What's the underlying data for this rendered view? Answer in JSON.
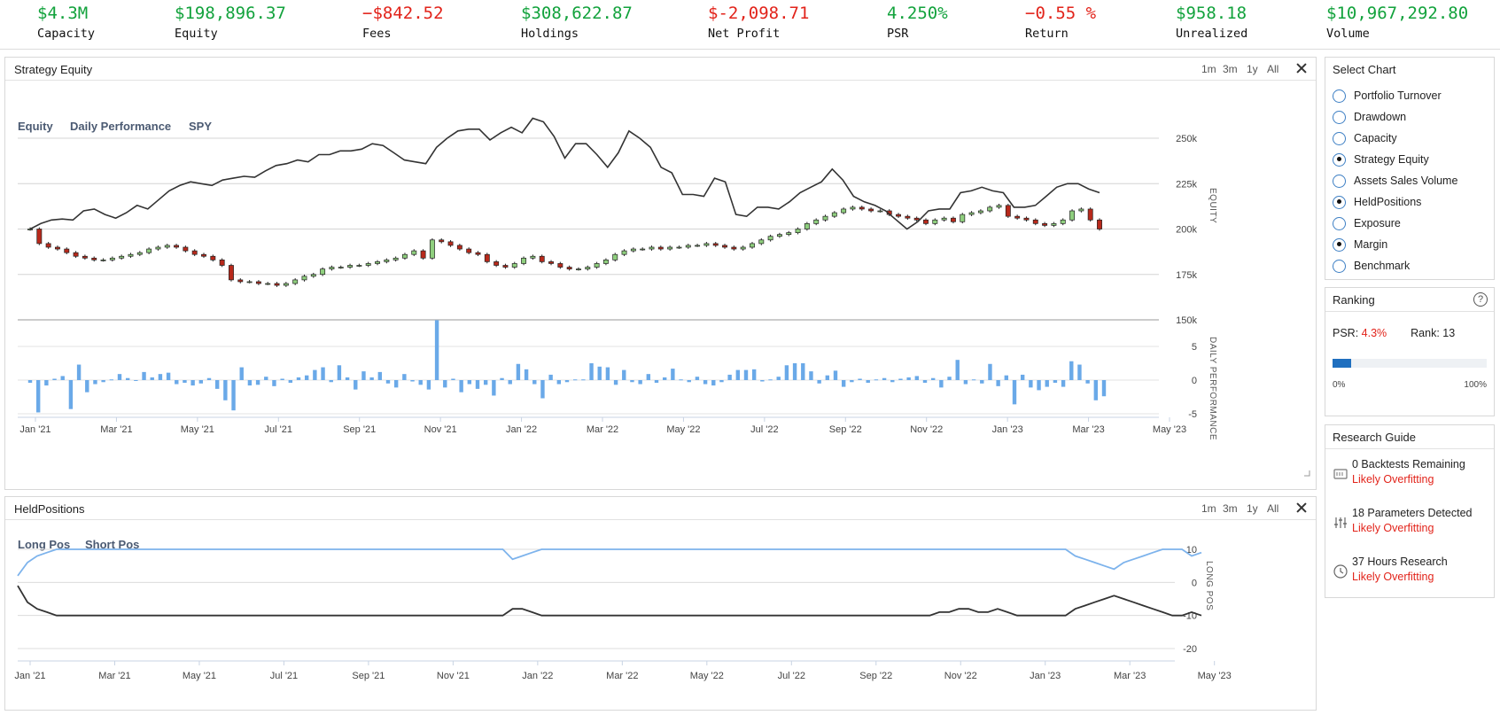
{
  "stats": [
    {
      "value": "$4.3M",
      "label": "Capacity",
      "tone": "pos"
    },
    {
      "value": "$198,896.37",
      "label": "Equity",
      "tone": "pos"
    },
    {
      "value": "−$842.52",
      "label": "Fees",
      "tone": "neg"
    },
    {
      "value": "$308,622.87",
      "label": "Holdings",
      "tone": "pos"
    },
    {
      "value": "$-2,098.71",
      "label": "Net Profit",
      "tone": "neg"
    },
    {
      "value": "4.250%",
      "label": "PSR",
      "tone": "pos"
    },
    {
      "value": "−0.55 %",
      "label": "Return",
      "tone": "neg"
    },
    {
      "value": "$958.18",
      "label": "Unrealized",
      "tone": "pos"
    },
    {
      "value": "$10,967,292.80",
      "label": "Volume",
      "tone": "pos"
    }
  ],
  "equity_panel": {
    "title": "Strategy Equity",
    "ranges": [
      "1m",
      "3m",
      "1y",
      "All"
    ],
    "legend": [
      "Equity",
      "Daily Performance",
      "SPY"
    ]
  },
  "held_panel": {
    "title": "HeldPositions",
    "ranges": [
      "1m",
      "3m",
      "1y",
      "All"
    ],
    "legend": [
      "Long Pos",
      "Short Pos"
    ]
  },
  "select_chart": {
    "title": "Select Chart",
    "options": [
      {
        "label": "Portfolio Turnover",
        "selected": false
      },
      {
        "label": "Drawdown",
        "selected": false
      },
      {
        "label": "Capacity",
        "selected": false
      },
      {
        "label": "Strategy Equity",
        "selected": true
      },
      {
        "label": "Assets Sales Volume",
        "selected": false
      },
      {
        "label": "HeldPositions",
        "selected": true
      },
      {
        "label": "Exposure",
        "selected": false
      },
      {
        "label": "Margin",
        "selected": true
      },
      {
        "label": "Benchmark",
        "selected": false
      }
    ]
  },
  "ranking": {
    "title": "Ranking",
    "help": "?",
    "psr_label": "PSR:",
    "psr_value": "4.3%",
    "rank_label": "Rank:",
    "rank_value": "13",
    "progress_fraction": 0.12,
    "min_label": "0%",
    "max_label": "100%"
  },
  "research_guide": {
    "title": "Research Guide",
    "items": [
      {
        "text": "0 Backtests Remaining",
        "warn": "Likely Overfitting",
        "icon": "terminal-icon"
      },
      {
        "text": "18 Parameters Detected",
        "warn": "Likely Overfitting",
        "icon": "sliders-icon"
      },
      {
        "text": "37 Hours Research",
        "warn": "Likely Overfitting",
        "icon": "clock-icon"
      }
    ]
  },
  "chart_data": [
    {
      "type": "line",
      "title": "Strategy Equity",
      "ylabel": "EQUITY",
      "ylim": [
        150000,
        250000
      ],
      "yticks": [
        "250k",
        "225k",
        "200k",
        "175k",
        "150k"
      ],
      "xticks": [
        "Jan '21",
        "Mar '21",
        "May '21",
        "Jul '21",
        "Sep '21",
        "Nov '21",
        "Jan '22",
        "Mar '22",
        "May '22",
        "Jul '22",
        "Sep '22",
        "Nov '22",
        "Jan '23",
        "Mar '23",
        "May '23"
      ],
      "series": [
        {
          "name": "SPY",
          "kind": "line",
          "color": "#333333",
          "values": [
            200000,
            203000,
            205000,
            205500,
            205000,
            210000,
            211000,
            208000,
            206000,
            209000,
            213000,
            211000,
            216000,
            221000,
            224000,
            226000,
            225000,
            224000,
            227000,
            228000,
            229000,
            228500,
            232000,
            235000,
            236000,
            238000,
            237000,
            241000,
            241000,
            243000,
            243000,
            244000,
            247000,
            246000,
            242000,
            238000,
            237000,
            236000,
            245000,
            250000,
            254000,
            255000,
            255000,
            249000,
            253000,
            256000,
            253000,
            261000,
            259000,
            251000,
            239000,
            247000,
            247000,
            241000,
            234000,
            242000,
            254000,
            250000,
            245000,
            234000,
            231000,
            219000,
            219000,
            218000,
            228000,
            226000,
            208000,
            207000,
            212000,
            212000,
            211000,
            215000,
            220000,
            223000,
            226000,
            233000,
            227000,
            218000,
            215000,
            213000,
            210000,
            205000,
            200000,
            204000,
            210000,
            211000,
            211000,
            220000,
            221000,
            223000,
            221000,
            220000,
            212000,
            212000,
            213000,
            218000,
            223000,
            225000,
            225000,
            222000,
            220000
          ]
        },
        {
          "name": "Equity",
          "kind": "candlestick",
          "up_color": "#8fcf7e",
          "down_color": "#b8291b",
          "close": [
            200000,
            192000,
            190000,
            189000,
            187000,
            185000,
            184000,
            183000,
            183000,
            184000,
            185000,
            186000,
            187000,
            189000,
            190000,
            191000,
            190000,
            188000,
            186000,
            185000,
            183000,
            180000,
            172000,
            171000,
            171000,
            170000,
            170000,
            169000,
            170000,
            172000,
            174000,
            175000,
            178000,
            179000,
            179000,
            180000,
            180000,
            181000,
            182000,
            183000,
            184000,
            186000,
            188000,
            184000,
            194000,
            193000,
            191000,
            189000,
            187000,
            186000,
            182000,
            180000,
            179000,
            181000,
            184000,
            185000,
            182000,
            181000,
            179000,
            178000,
            178000,
            179000,
            181000,
            183000,
            186000,
            188000,
            189000,
            189000,
            190000,
            189000,
            190000,
            190000,
            191000,
            191000,
            192000,
            191000,
            190000,
            189000,
            190000,
            192000,
            194000,
            196000,
            197000,
            198000,
            200000,
            203000,
            205000,
            207000,
            209000,
            211000,
            212000,
            211000,
            210000,
            210000,
            208000,
            207000,
            206000,
            205000,
            203000,
            205000,
            206000,
            204000,
            208000,
            209000,
            210000,
            212000,
            213000,
            207000,
            206000,
            205000,
            203000,
            202000,
            203000,
            205000,
            210000,
            211000,
            205000,
            200000
          ]
        }
      ]
    },
    {
      "type": "bar",
      "title": "Daily Performance",
      "ylabel": "DAILY PERFORMANCE",
      "ylim": [
        -5,
        7.5
      ],
      "yticks": [
        "5",
        "0",
        "-5"
      ],
      "series": [
        {
          "name": "Daily Performance",
          "color": "#6aa9e8",
          "values": [
            -0.4,
            -4.8,
            -0.8,
            0.2,
            0.6,
            -4.3,
            2.3,
            -1.8,
            -0.6,
            -0.3,
            0.1,
            0.9,
            0.3,
            -0.1,
            1.2,
            0.4,
            0.9,
            1.1,
            -0.6,
            -0.4,
            -0.8,
            -0.5,
            0.3,
            -1.3,
            -3.0,
            -4.5,
            1.9,
            -0.8,
            -0.7,
            0.5,
            -0.9,
            0.2,
            -0.4,
            0.4,
            0.7,
            1.5,
            1.9,
            -0.3,
            2.2,
            0.4,
            -1.4,
            1.3,
            0.4,
            1.2,
            -0.5,
            -1.1,
            0.9,
            -0.2,
            -0.7,
            -1.4,
            8.9,
            -1.1,
            0.2,
            -1.8,
            -0.6,
            -1.3,
            -0.7,
            -2.3,
            0.3,
            -0.6,
            2.4,
            1.6,
            -0.6,
            -2.7,
            0.8,
            -0.6,
            -0.3,
            0.1,
            0.1,
            2.5,
            2.0,
            1.9,
            -0.7,
            1.5,
            -0.3,
            -0.6,
            0.9,
            -0.4,
            0.4,
            1.7,
            0.1,
            -0.3,
            0.5,
            -0.6,
            -0.8,
            -0.3,
            0.8,
            1.5,
            1.5,
            1.6,
            -0.2,
            0.1,
            0.5,
            2.2,
            2.5,
            2.5,
            1.3,
            -0.5,
            0.7,
            1.4,
            -1.0,
            -0.3,
            0.2,
            -0.4,
            0.1,
            0.3,
            -0.3,
            0.2,
            0.4,
            0.6,
            -0.4,
            0.3,
            -1.1,
            0.5,
            3.0,
            -0.6,
            0.1,
            -0.5,
            2.4,
            -0.9,
            0.7,
            -3.6,
            0.8,
            -1.1,
            -1.5,
            -1.0,
            -0.4,
            -1.0,
            2.8,
            2.3,
            -0.5,
            -3.0,
            -2.4
          ]
        }
      ]
    },
    {
      "type": "line",
      "title": "HeldPositions",
      "ylabel": "LONG POS",
      "ylim": [
        -20,
        10
      ],
      "yticks": [
        "10",
        "0",
        "-10",
        "-20"
      ],
      "xticks": [
        "Jan '21",
        "Mar '21",
        "May '21",
        "Jul '21",
        "Sep '21",
        "Nov '21",
        "Jan '22",
        "Mar '22",
        "May '22",
        "Jul '22",
        "Sep '22",
        "Nov '22",
        "Jan '23",
        "Mar '23",
        "May '23"
      ],
      "series": [
        {
          "name": "Long Pos",
          "color": "#7db3ec",
          "values": [
            2,
            6,
            8,
            9,
            10,
            10,
            10,
            10,
            10,
            10,
            10,
            10,
            10,
            10,
            10,
            10,
            10,
            10,
            10,
            10,
            10,
            10,
            10,
            10,
            10,
            10,
            10,
            10,
            10,
            10,
            10,
            10,
            10,
            10,
            10,
            10,
            10,
            10,
            10,
            10,
            10,
            10,
            10,
            10,
            10,
            10,
            10,
            10,
            10,
            10,
            10,
            7,
            8,
            9,
            10,
            10,
            10,
            10,
            10,
            10,
            10,
            10,
            10,
            10,
            10,
            10,
            10,
            10,
            10,
            10,
            10,
            10,
            10,
            10,
            10,
            10,
            10,
            10,
            10,
            10,
            10,
            10,
            10,
            10,
            10,
            10,
            10,
            10,
            10,
            10,
            10,
            10,
            10,
            10,
            10,
            10,
            10,
            10,
            10,
            10,
            10,
            10,
            10,
            10,
            10,
            10,
            10,
            10,
            10,
            8,
            7,
            6,
            5,
            4,
            6,
            7,
            8,
            9,
            10,
            10,
            10,
            8,
            9
          ]
        },
        {
          "name": "Short Pos",
          "color": "#333333",
          "values": [
            -1,
            -6,
            -8,
            -9,
            -10,
            -10,
            -10,
            -10,
            -10,
            -10,
            -10,
            -10,
            -10,
            -10,
            -10,
            -10,
            -10,
            -10,
            -10,
            -10,
            -10,
            -10,
            -10,
            -10,
            -10,
            -10,
            -10,
            -10,
            -10,
            -10,
            -10,
            -10,
            -10,
            -10,
            -10,
            -10,
            -10,
            -10,
            -10,
            -10,
            -10,
            -10,
            -10,
            -10,
            -10,
            -10,
            -10,
            -10,
            -10,
            -10,
            -10,
            -8,
            -8,
            -9,
            -10,
            -10,
            -10,
            -10,
            -10,
            -10,
            -10,
            -10,
            -10,
            -10,
            -10,
            -10,
            -10,
            -10,
            -10,
            -10,
            -10,
            -10,
            -10,
            -10,
            -10,
            -10,
            -10,
            -10,
            -10,
            -10,
            -10,
            -10,
            -10,
            -10,
            -10,
            -10,
            -10,
            -10,
            -10,
            -10,
            -10,
            -10,
            -10,
            -10,
            -10,
            -9,
            -9,
            -8,
            -8,
            -9,
            -9,
            -8,
            -9,
            -10,
            -10,
            -10,
            -10,
            -10,
            -10,
            -8,
            -7,
            -6,
            -5,
            -4,
            -5,
            -6,
            -7,
            -8,
            -9,
            -10,
            -10,
            -9,
            -10
          ]
        }
      ]
    }
  ]
}
